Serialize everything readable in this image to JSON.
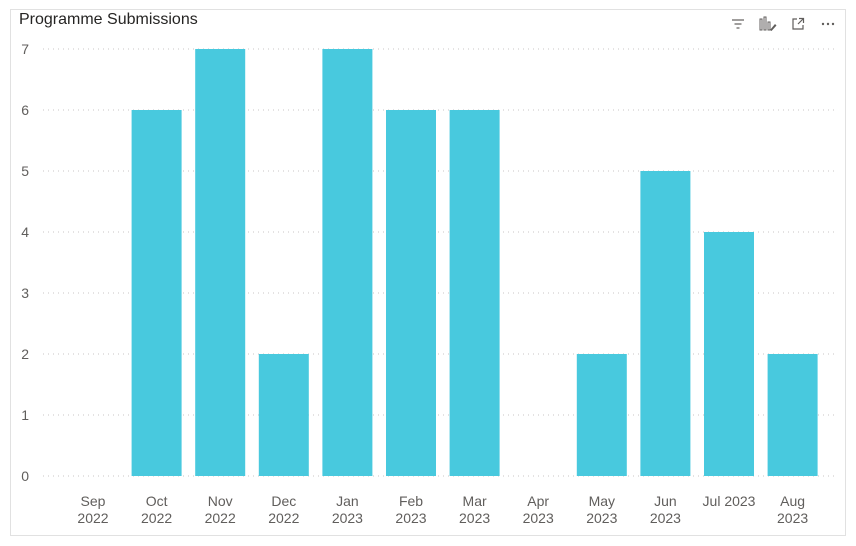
{
  "visual": {
    "title": "Programme Submissions",
    "toolbar": [
      {
        "name": "filter-icon",
        "label": "Filters"
      },
      {
        "name": "format-icon",
        "label": "Format"
      },
      {
        "name": "focus-mode-icon",
        "label": "Focus mode"
      },
      {
        "name": "more-options-icon",
        "label": "More options"
      }
    ]
  },
  "chart_data": {
    "type": "bar",
    "title": "Programme Submissions",
    "xlabel": "",
    "ylabel": "",
    "ylim": [
      0,
      7
    ],
    "yticks": [
      0,
      1,
      2,
      3,
      4,
      5,
      6,
      7
    ],
    "grid": true,
    "bar_color": "#48c9de",
    "categories": [
      [
        "Sep",
        "2022"
      ],
      [
        "Oct",
        "2022"
      ],
      [
        "Nov",
        "2022"
      ],
      [
        "Dec",
        "2022"
      ],
      [
        "Jan",
        "2023"
      ],
      [
        "Feb",
        "2023"
      ],
      [
        "Mar",
        "2023"
      ],
      [
        "Apr",
        "2023"
      ],
      [
        "May",
        "2023"
      ],
      [
        "Jun",
        "2023"
      ],
      [
        "Jul 2023"
      ],
      [
        "Aug",
        "2023"
      ]
    ],
    "values": [
      0,
      6,
      7,
      2,
      7,
      6,
      6,
      0,
      2,
      5,
      4,
      2
    ]
  }
}
